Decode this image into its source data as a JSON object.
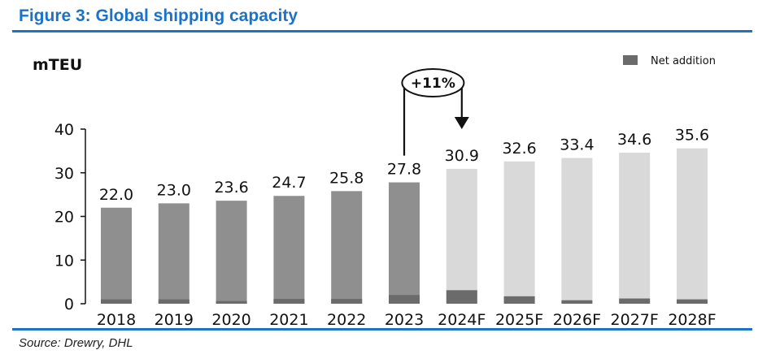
{
  "figure": {
    "title": "Figure 3: Global shipping capacity",
    "source": "Source: Drewry, DHL"
  },
  "colors": {
    "accent": "#1a73c6",
    "historical_bar": "#8f8f8f",
    "forecast_bar": "#d9d9d9",
    "net_addition": "#6b6b6b"
  },
  "chart_data": {
    "type": "bar",
    "unit_label": "mTEU",
    "categories": [
      "2018",
      "2019",
      "2020",
      "2021",
      "2022",
      "2023",
      "2024F",
      "2025F",
      "2026F",
      "2027F",
      "2028F"
    ],
    "values": [
      22.0,
      23.0,
      23.6,
      24.7,
      25.8,
      27.8,
      30.9,
      32.6,
      33.4,
      34.6,
      35.6
    ],
    "value_labels": [
      "22.0",
      "23.0",
      "23.6",
      "24.7",
      "25.8",
      "27.8",
      "30.9",
      "32.6",
      "33.4",
      "34.6",
      "35.6"
    ],
    "net_addition": [
      1.0,
      1.0,
      0.6,
      1.1,
      1.1,
      2.0,
      3.1,
      1.7,
      0.8,
      1.2,
      1.0
    ],
    "forecast_from_index": 6,
    "ylim": [
      0,
      40
    ],
    "yticks": [
      0,
      10,
      20,
      30,
      40
    ],
    "legend": {
      "label": "Net addition",
      "position": "top-right"
    },
    "annotation": {
      "text": "+11%",
      "from": "2023",
      "to": "2024F"
    },
    "grid": false
  }
}
